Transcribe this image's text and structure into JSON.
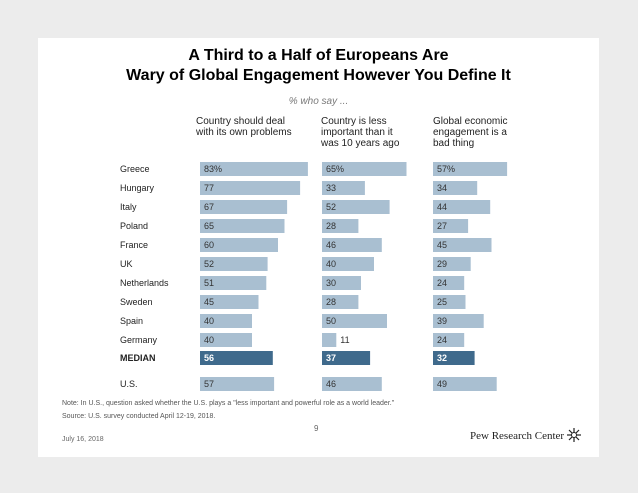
{
  "header": {
    "title_line1": "A Third to a Half of Europeans Are",
    "title_line2": "Wary of Global Engagement However You Define It",
    "subtitle": "% who say ..."
  },
  "columns": [
    {
      "line1": "Country should deal",
      "line2": "with its own problems",
      "line3": ""
    },
    {
      "line1": "Country is less",
      "line2": "important than it",
      "line3": "was 10 years ago"
    },
    {
      "line1": "Global economic",
      "line2": "engagement is a",
      "line3": "bad thing"
    }
  ],
  "colors": {
    "bar": "#a9bfd1",
    "median_bar": "#3f6a8c",
    "text": "#333333"
  },
  "chart_data": {
    "type": "bar",
    "title": "A Third to a Half of Europeans Are Wary of Global Engagement However You Define It",
    "subtitle": "% who say ...",
    "categories": [
      "Greece",
      "Hungary",
      "Italy",
      "Poland",
      "France",
      "UK",
      "Netherlands",
      "Sweden",
      "Spain",
      "Germany",
      "MEDIAN",
      "U.S."
    ],
    "series": [
      {
        "name": "Country should deal with its own problems",
        "values": [
          83,
          77,
          67,
          65,
          60,
          52,
          51,
          45,
          40,
          40,
          56,
          57
        ],
        "labels": [
          "83%",
          "77",
          "67",
          "65",
          "60",
          "52",
          "51",
          "45",
          "40",
          "40",
          "56",
          "57"
        ]
      },
      {
        "name": "Country is less important than it was 10 years ago",
        "values": [
          65,
          33,
          52,
          28,
          46,
          40,
          30,
          28,
          50,
          11,
          37,
          46
        ],
        "labels": [
          "65%",
          "33",
          "52",
          "28",
          "46",
          "40",
          "30",
          "28",
          "50",
          "11",
          "37",
          "46"
        ]
      },
      {
        "name": "Global economic engagement is a bad thing",
        "values": [
          57,
          34,
          44,
          27,
          45,
          29,
          24,
          25,
          39,
          24,
          32,
          49
        ],
        "labels": [
          "57%",
          "34",
          "44",
          "27",
          "45",
          "29",
          "24",
          "25",
          "39",
          "24",
          "32",
          "49"
        ]
      }
    ],
    "highlight_category": "MEDIAN"
  },
  "notes": {
    "note": "Note: In U.S., question asked whether the U.S. plays a \"less important and powerful role as a world leader.\"",
    "source": "Source: U.S. survey conducted April 12-19, 2018."
  },
  "footer": {
    "date": "July 16, 2018",
    "page": "9",
    "brand": "Pew Research Center"
  }
}
